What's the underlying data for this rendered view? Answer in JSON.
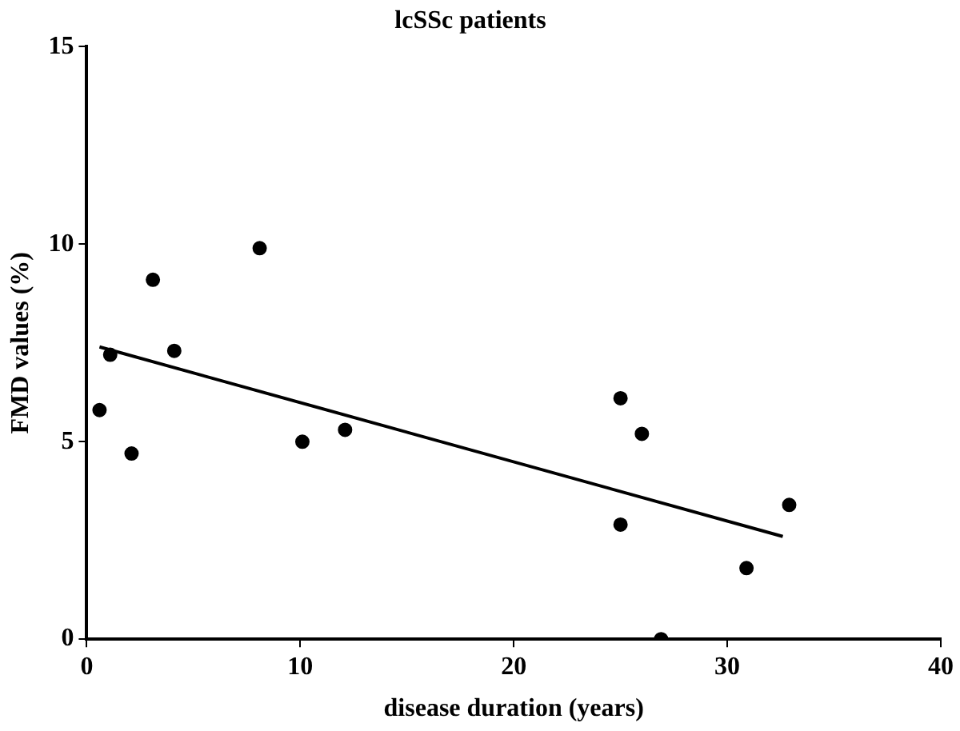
{
  "chart_data": {
    "type": "scatter",
    "title": "lcSSc patients",
    "xlabel": "disease duration (years)",
    "ylabel": "FMD values (%)",
    "xlim": [
      0,
      40
    ],
    "xticks": [
      0,
      10,
      20,
      30,
      40
    ],
    "ylim": [
      0,
      15
    ],
    "yticks": [
      0,
      5,
      10,
      15
    ],
    "grid": false,
    "legend": false,
    "marker": "circle",
    "series": [
      {
        "color": "#000000",
        "x": [
          0.6,
          1.1,
          2.1,
          3.1,
          4.1,
          8.1,
          10.1,
          12.1,
          25.0,
          26.0,
          25.0,
          32.9,
          30.9,
          26.9
        ],
        "values": [
          5.8,
          7.2,
          4.7,
          9.1,
          7.3,
          9.9,
          5.0,
          5.3,
          6.1,
          5.2,
          2.9,
          3.4,
          1.8,
          0
        ]
      },
      {
        "type": "line",
        "color": "#000000",
        "line_style": "solid",
        "marker": "none",
        "x": [
          0.6,
          32.6
        ],
        "values": [
          7.4,
          2.6
        ]
      }
    ]
  }
}
